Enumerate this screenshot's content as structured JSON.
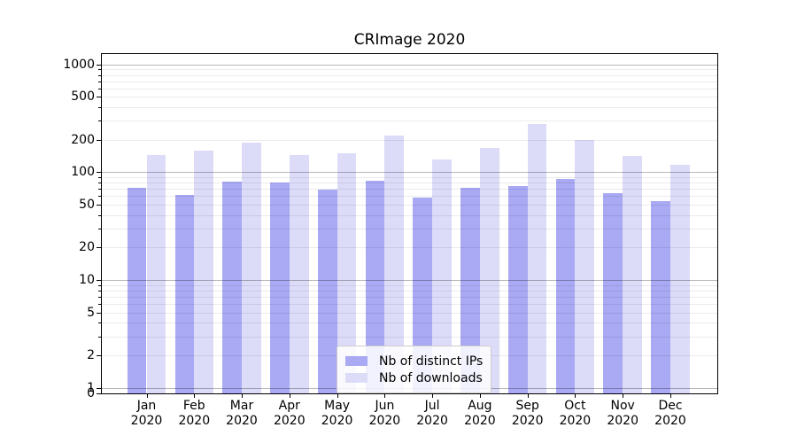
{
  "title": "CRImage 2020",
  "colors": {
    "ips": "#a9a9f4",
    "downloads": "#dcdcf9",
    "major_grid": "#b4b4b4",
    "minor_grid": "#ebebeb",
    "frame": "#000000"
  },
  "y_axis": {
    "tick_values": [
      0,
      1,
      2,
      5,
      10,
      20,
      50,
      100,
      200,
      500,
      1000
    ],
    "tick_labels": [
      "0",
      "1",
      "2",
      "5",
      "10",
      "20",
      "50",
      "100",
      "200",
      "500",
      "1000"
    ]
  },
  "x_axis": {
    "months": [
      "Jan",
      "Feb",
      "Mar",
      "Apr",
      "May",
      "Jun",
      "Jul",
      "Aug",
      "Sep",
      "Oct",
      "Nov",
      "Dec"
    ],
    "year": "2020"
  },
  "legend": {
    "items": [
      {
        "label": "Nb of distinct IPs",
        "color_key": "ips"
      },
      {
        "label": "Nb of downloads",
        "color_key": "downloads"
      }
    ]
  },
  "chart_data": {
    "type": "bar",
    "title": "CRImage 2020",
    "categories": [
      "Jan 2020",
      "Feb 2020",
      "Mar 2020",
      "Apr 2020",
      "May 2020",
      "Jun 2020",
      "Jul 2020",
      "Aug 2020",
      "Sep 2020",
      "Oct 2020",
      "Nov 2020",
      "Dec 2020"
    ],
    "series": [
      {
        "name": "Nb of distinct IPs",
        "values": [
          72,
          61,
          82,
          80,
          69,
          83,
          58,
          72,
          75,
          87,
          64,
          54
        ]
      },
      {
        "name": "Nb of downloads",
        "values": [
          144,
          159,
          188,
          144,
          149,
          220,
          131,
          169,
          280,
          198,
          142,
          117
        ]
      }
    ],
    "yscale": "symlog",
    "ylim": [
      0,
      1270
    ],
    "yticks": [
      0,
      1,
      2,
      5,
      10,
      20,
      50,
      100,
      200,
      500,
      1000
    ],
    "grid": true,
    "legend_position": "lower center"
  }
}
